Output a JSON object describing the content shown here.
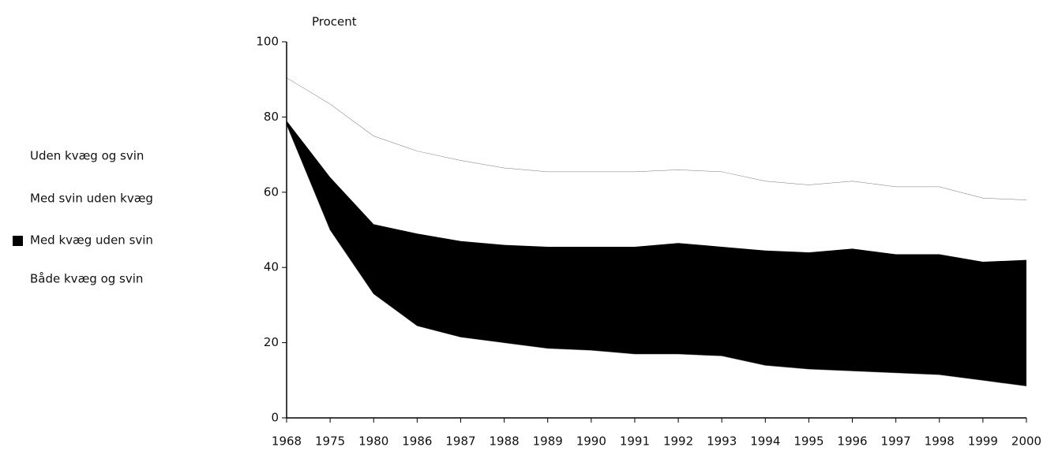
{
  "chart_data": {
    "type": "stacked-area",
    "y_label": "Procent",
    "categories": [
      "1968",
      "1975",
      "1980",
      "1986",
      "1987",
      "1988",
      "1989",
      "1990",
      "1991",
      "1992",
      "1993",
      "1994",
      "1995",
      "1996",
      "1997",
      "1998",
      "1999",
      "2000"
    ],
    "series": [
      {
        "name": "Både kvæg og svin",
        "color": "#ffffff",
        "values": [
          78,
          50,
          33,
          24.5,
          21.5,
          20,
          18.5,
          18,
          17,
          17,
          16.5,
          14,
          13,
          12.5,
          12,
          11.5,
          10,
          8.5
        ]
      },
      {
        "name": "Med kvæg uden svin",
        "color": "#000000",
        "values": [
          1,
          14,
          18.5,
          24.5,
          25.5,
          26,
          27,
          27.5,
          28.5,
          29.5,
          29,
          30.5,
          31,
          32.5,
          31.5,
          32,
          31.5,
          33.5
        ]
      },
      {
        "name": "Med svin uden kvæg",
        "color": "#ffffff",
        "values": [
          11.5,
          19.5,
          23.5,
          22,
          21.5,
          20.5,
          20,
          20,
          20,
          19.5,
          20,
          18.5,
          18,
          18,
          18,
          18,
          17,
          16
        ]
      },
      {
        "name": "Uden kvæg og svin",
        "color": "#ffffff",
        "values": [
          9.5,
          16.5,
          25,
          29,
          31.5,
          33.5,
          34.5,
          34.5,
          34.5,
          34,
          34.5,
          37,
          38,
          37,
          38.5,
          38.5,
          41.5,
          42
        ]
      }
    ],
    "ylim": [
      0,
      100
    ],
    "yticks": [
      0,
      20,
      40,
      60,
      80,
      100
    ]
  }
}
